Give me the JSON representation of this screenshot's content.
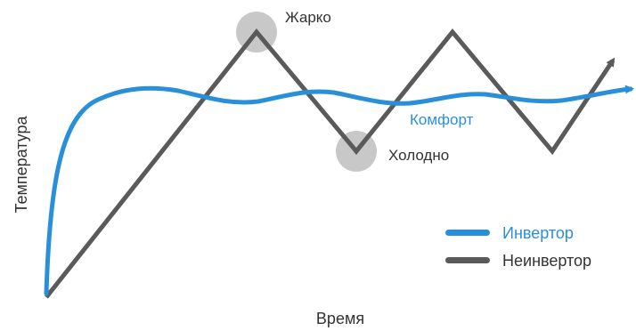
{
  "chart_data": {
    "type": "line",
    "title": "",
    "xlabel": "Время",
    "ylabel": "Температура",
    "grid": false,
    "legend_position": "bottom-right",
    "series": [
      {
        "name": "Инвертор",
        "color": "#2a8fd9",
        "shape": "steep rise then gentle oscillation around a steady level",
        "annotation": "Комфорт"
      },
      {
        "name": "Неинвертор",
        "color": "#5a5a5a",
        "shape": "sawtooth swinging between hot and cold",
        "annotations": [
          "Жарко",
          "Холодно"
        ]
      }
    ],
    "annotations": {
      "hot": "Жарко",
      "cold": "Холодно",
      "comfort": "Комфорт"
    },
    "legend": [
      {
        "label": "Инвертор",
        "color": "#2a8fd9"
      },
      {
        "label": "Неинвертор",
        "color": "#5a5a5a"
      }
    ]
  }
}
